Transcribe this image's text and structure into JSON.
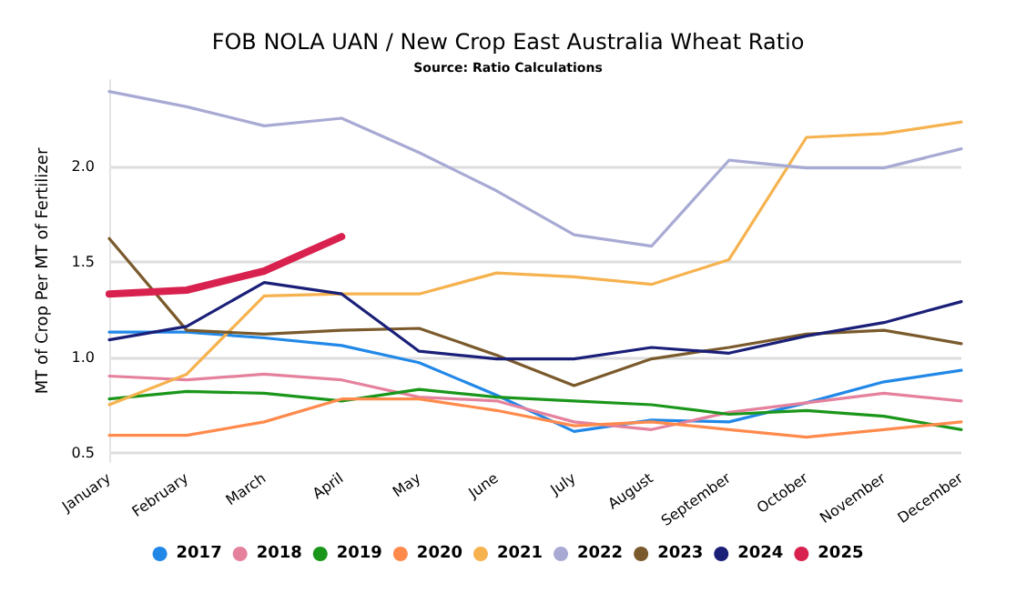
{
  "chart_data": {
    "type": "line",
    "title": "FOB NOLA UAN / New Crop East Australia Wheat Ratio",
    "subtitle": "Source: Ratio Calculations",
    "ylabel": "MT of Crop Per MT of Fertilizer",
    "categories": [
      "January",
      "February",
      "March",
      "April",
      "May",
      "June",
      "July",
      "August",
      "September",
      "October",
      "November",
      "December"
    ],
    "series": [
      {
        "name": "2017",
        "color": "#2188e8",
        "values": [
          1.13,
          1.13,
          1.1,
          1.06,
          0.97,
          0.8,
          0.61,
          0.67,
          0.66,
          0.76,
          0.87,
          0.93
        ]
      },
      {
        "name": "2018",
        "color": "#e5819c",
        "values": [
          0.9,
          0.88,
          0.91,
          0.88,
          0.79,
          0.77,
          0.66,
          0.62,
          0.71,
          0.76,
          0.81,
          0.77
        ]
      },
      {
        "name": "2019",
        "color": "#1a961a",
        "values": [
          0.78,
          0.82,
          0.81,
          0.77,
          0.83,
          0.79,
          0.77,
          0.75,
          0.7,
          0.72,
          0.69,
          0.62
        ]
      },
      {
        "name": "2020",
        "color": "#ff8a4c",
        "values": [
          0.59,
          0.59,
          0.66,
          0.78,
          0.78,
          0.72,
          0.64,
          0.66,
          0.62,
          0.58,
          0.62,
          0.66
        ]
      },
      {
        "name": "2021",
        "color": "#f6b24e",
        "values": [
          0.75,
          0.91,
          1.32,
          1.33,
          1.33,
          1.44,
          1.42,
          1.38,
          1.51,
          2.15,
          2.17,
          2.23
        ]
      },
      {
        "name": "2022",
        "color": "#a8aad4",
        "values": [
          2.39,
          2.31,
          2.21,
          2.25,
          2.07,
          1.87,
          1.64,
          1.58,
          2.03,
          1.99,
          1.99,
          2.09
        ]
      },
      {
        "name": "2023",
        "color": "#7a5a2c",
        "values": [
          1.62,
          1.14,
          1.12,
          1.14,
          1.15,
          1.01,
          0.85,
          0.99,
          1.05,
          1.12,
          1.14,
          1.07
        ]
      },
      {
        "name": "2024",
        "color": "#1a1f78",
        "values": [
          1.09,
          1.16,
          1.39,
          1.33,
          1.03,
          0.99,
          0.99,
          1.05,
          1.02,
          1.11,
          1.18,
          1.29
        ]
      },
      {
        "name": "2025",
        "color": "#d8214e",
        "values": [
          1.33,
          1.35,
          1.45,
          1.63,
          null,
          null,
          null,
          null,
          null,
          null,
          null,
          null
        ]
      }
    ],
    "ylim": [
      0.45,
      2.45
    ],
    "yticks": [
      0.5,
      {
        "value": 1,
        "label": "1.0"
      },
      1.5,
      {
        "value": 2,
        "label": "2.0"
      }
    ],
    "grid": "y",
    "legend": "bottom",
    "marker": "none",
    "line_style": "solid"
  }
}
